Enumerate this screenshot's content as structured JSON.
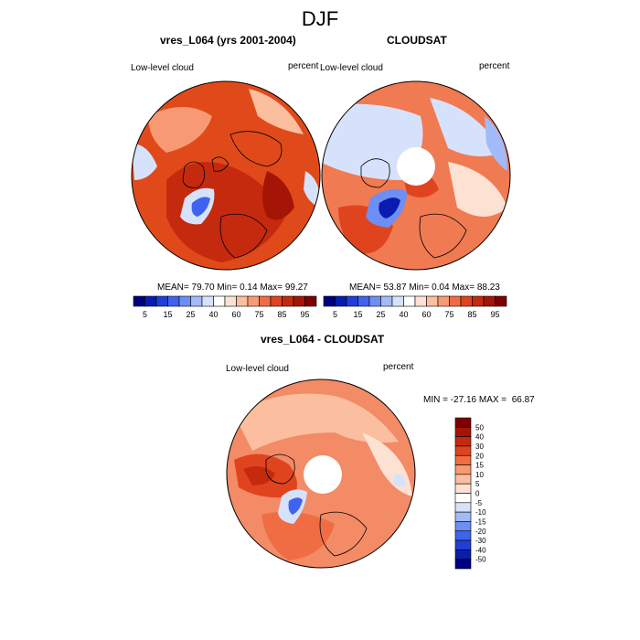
{
  "figure": {
    "title": "DJF"
  },
  "panels": [
    {
      "title": "vres_L064 (yrs 2001-2004)",
      "left_label": "Low-level cloud",
      "right_label": "percent",
      "stats": {
        "mean_label": "MEAN=",
        "mean": "79.70",
        "min_label": "Min=",
        "min": "0.14",
        "max_label": "Max=",
        "max": "99.27"
      },
      "map": {
        "base_color": "#e04a1a",
        "pole_hole": false
      }
    },
    {
      "title": "CLOUDSAT",
      "left_label": "Low-level cloud",
      "right_label": "percent",
      "stats": {
        "mean_label": "MEAN=",
        "mean": "53.87",
        "min_label": "Min=",
        "min": "0.04",
        "max_label": "Max=",
        "max": "88.23"
      },
      "map": {
        "base_color": "#f07a52",
        "pole_hole": true
      }
    },
    {
      "title": "vres_L064 - CLOUDSAT",
      "left_label": "Low-level cloud",
      "right_label": "percent",
      "stats_line": "MIN = -27.16 MAX =  66.87",
      "map": {
        "base_color": "#f28b66",
        "pole_hole": true
      }
    }
  ],
  "colorbar_abs": {
    "colors": [
      "#00007f",
      "#0a1cb0",
      "#1f3fd8",
      "#3f63ee",
      "#6d8ef4",
      "#a3baf8",
      "#d6e2fc",
      "#ffffff",
      "#fde1d2",
      "#fbbe9f",
      "#f79a74",
      "#f06d44",
      "#e0441f",
      "#c52a0e",
      "#a51506",
      "#7d0000"
    ],
    "labels": [
      "5",
      "15",
      "25",
      "40",
      "60",
      "75",
      "85",
      "95"
    ]
  },
  "colorbar_diff": {
    "colors": [
      "#7d0000",
      "#a51506",
      "#c52a0e",
      "#e0441f",
      "#f06d44",
      "#f79a74",
      "#fbbe9f",
      "#fde1d2",
      "#ffffff",
      "#d6e2fc",
      "#a3baf8",
      "#6d8ef4",
      "#3f63ee",
      "#1f3fd8",
      "#0a1cb0",
      "#00007f"
    ],
    "labels": [
      "50",
      "40",
      "30",
      "20",
      "15",
      "10",
      "5",
      "0",
      "-5",
      "-10",
      "-15",
      "-20",
      "-30",
      "-40",
      "-50"
    ]
  }
}
